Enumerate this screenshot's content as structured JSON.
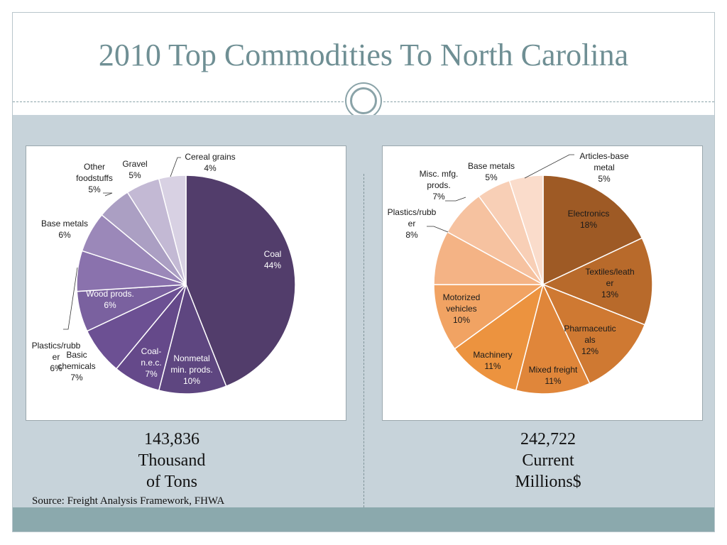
{
  "slide": {
    "title": "2010 Top Commodities To North Carolina",
    "source": "Source: Freight Analysis Framework, FHWA"
  },
  "left_stat": {
    "line1": "143,836",
    "line2": "Thousand",
    "line3": "of Tons"
  },
  "right_stat": {
    "line1": "242,722",
    "line2": "Current",
    "line3": "Millions$"
  },
  "chart_data": [
    {
      "type": "pie",
      "title": "",
      "slices": [
        {
          "label": [
            "Coal",
            "44%"
          ],
          "value": 44,
          "color": "#523d6b"
        },
        {
          "label": [
            "Nonmetal",
            "min. prods.",
            "10%"
          ],
          "value": 10,
          "color": "#5e4680"
        },
        {
          "label": [
            "Coal-",
            "n.e.c.",
            "7%"
          ],
          "value": 7,
          "color": "#65498a"
        },
        {
          "label": [
            "Basic",
            "chemicals",
            "7%"
          ],
          "value": 7,
          "color": "#6c5093"
        },
        {
          "label": [
            "Wood prods.",
            "6%"
          ],
          "value": 6,
          "color": "#7a619f"
        },
        {
          "label": [
            "Plastics/rubb",
            "er",
            "6%"
          ],
          "value": 6,
          "color": "#8a72ad"
        },
        {
          "label": [
            "Base metals",
            "6%"
          ],
          "value": 6,
          "color": "#9b88b9"
        },
        {
          "label": [
            "Other",
            "foodstuffs",
            "5%"
          ],
          "value": 5,
          "color": "#ab9fc3"
        },
        {
          "label": [
            "Gravel",
            "5%"
          ],
          "value": 5,
          "color": "#c3b9d4"
        },
        {
          "label": [
            "Cereal grains",
            "4%"
          ],
          "value": 4,
          "color": "#d8d1e3"
        }
      ]
    },
    {
      "type": "pie",
      "title": "",
      "slices": [
        {
          "label": [
            "Electronics",
            "18%"
          ],
          "value": 18,
          "color": "#9e5a25"
        },
        {
          "label": [
            "Textiles/leath",
            "er",
            "13%"
          ],
          "value": 13,
          "color": "#b86a2b"
        },
        {
          "label": [
            "Pharmaceutic",
            "als",
            "12%"
          ],
          "value": 12,
          "color": "#cf7932"
        },
        {
          "label": [
            "Mixed freight",
            "11%"
          ],
          "value": 11,
          "color": "#e0863a"
        },
        {
          "label": [
            "Machinery",
            "11%"
          ],
          "value": 11,
          "color": "#ec933f"
        },
        {
          "label": [
            "Motorized",
            "vehicles",
            "10%"
          ],
          "value": 10,
          "color": "#f1a363"
        },
        {
          "label": [
            "Plastics/rubb",
            "er",
            "8%"
          ],
          "value": 8,
          "color": "#f4b385"
        },
        {
          "label": [
            "Misc. mfg.",
            "prods.",
            "7%"
          ],
          "value": 7,
          "color": "#f6c2a0"
        },
        {
          "label": [
            "Base metals",
            "5%"
          ],
          "value": 5,
          "color": "#f8cfb6"
        },
        {
          "label": [
            "Articles-base",
            "metal",
            "5%"
          ],
          "value": 5,
          "color": "#fadccb"
        }
      ]
    }
  ]
}
